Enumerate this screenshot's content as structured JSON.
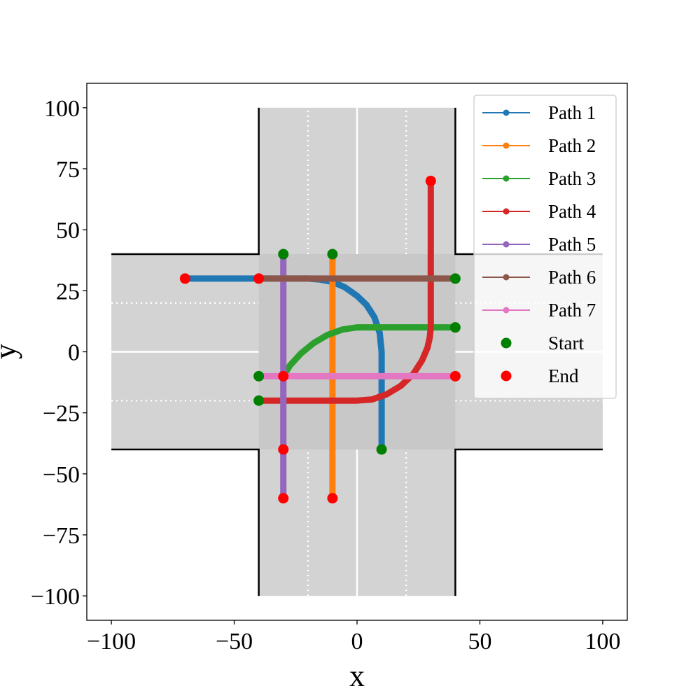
{
  "chart_data": {
    "type": "line",
    "xlabel": "x",
    "ylabel": "y",
    "xlim": [
      -110,
      110
    ],
    "ylim": [
      -110,
      110
    ],
    "xticks": [
      -100,
      -50,
      0,
      50,
      100
    ],
    "yticks": [
      -100,
      -75,
      -50,
      -25,
      0,
      25,
      50,
      75,
      100
    ],
    "xtick_labels": [
      "−100",
      "−50",
      "0",
      "50",
      "100"
    ],
    "ytick_labels": [
      "−100",
      "−75",
      "−50",
      "−25",
      "0",
      "25",
      "50",
      "75",
      "100"
    ],
    "grid": false,
    "legend_position": "top-right",
    "colors": {
      "road": "#d3d3d3",
      "intersection": "#c8c8c8",
      "road_edge": "#000000",
      "lane_line": "#ffffff",
      "start_marker": "#008000",
      "end_marker": "#ff0000"
    },
    "road_layout": {
      "horizontal_road": {
        "x": [
          -100,
          100
        ],
        "y": [
          -40,
          40
        ]
      },
      "vertical_road": {
        "x": [
          -40,
          40
        ],
        "y": [
          -100,
          100
        ]
      },
      "solid_center_lines": [
        {
          "points": [
            [
              -100,
              0
            ],
            [
              -40,
              0
            ]
          ]
        },
        {
          "points": [
            [
              40,
              0
            ],
            [
              100,
              0
            ]
          ]
        },
        {
          "points": [
            [
              0,
              40
            ],
            [
              0,
              100
            ]
          ]
        },
        {
          "points": [
            [
              0,
              -100
            ],
            [
              0,
              -40
            ]
          ]
        }
      ],
      "dotted_lane_lines": [
        {
          "points": [
            [
              -100,
              20
            ],
            [
              -40,
              20
            ]
          ]
        },
        {
          "points": [
            [
              -100,
              -20
            ],
            [
              -40,
              -20
            ]
          ]
        },
        {
          "points": [
            [
              40,
              20
            ],
            [
              100,
              20
            ]
          ]
        },
        {
          "points": [
            [
              40,
              -20
            ],
            [
              100,
              -20
            ]
          ]
        },
        {
          "points": [
            [
              -20,
              40
            ],
            [
              -20,
              100
            ]
          ]
        },
        {
          "points": [
            [
              20,
              40
            ],
            [
              20,
              100
            ]
          ]
        },
        {
          "points": [
            [
              -20,
              -100
            ],
            [
              -20,
              -40
            ]
          ]
        },
        {
          "points": [
            [
              20,
              -100
            ],
            [
              20,
              -40
            ]
          ]
        }
      ]
    },
    "series": [
      {
        "name": "Path 1",
        "color": "#1f77b4",
        "points": [
          [
            10,
            -40
          ],
          [
            10,
            0
          ],
          [
            9.24,
            7.65
          ],
          [
            7.07,
            14.14
          ],
          [
            3.83,
            19.24
          ],
          [
            0,
            22.93
          ],
          [
            -5,
            26.46
          ],
          [
            -10,
            28.66
          ],
          [
            -15,
            29.6
          ],
          [
            -20,
            30
          ],
          [
            -70,
            30
          ]
        ],
        "start": [
          10,
          -40
        ],
        "end": [
          -70,
          30
        ]
      },
      {
        "name": "Path 2",
        "color": "#ff7f0e",
        "points": [
          [
            -10,
            40
          ],
          [
            -10,
            -60
          ]
        ],
        "start": [
          -10,
          40
        ],
        "end": [
          -10,
          -60
        ]
      },
      {
        "name": "Path 3",
        "color": "#2ca02c",
        "points": [
          [
            40,
            10
          ],
          [
            0,
            10
          ],
          [
            -5.96,
            9.13
          ],
          [
            -12.03,
            6.9
          ],
          [
            -17.78,
            3.49
          ],
          [
            -22.93,
            -0.78
          ],
          [
            -27.32,
            -5.62
          ],
          [
            -30,
            -10
          ]
        ],
        "start": [
          40,
          10
        ],
        "end": [
          -30,
          -10
        ]
      },
      {
        "name": "Path 4",
        "color": "#d62728",
        "points": [
          [
            -40,
            -20
          ],
          [
            0,
            -20
          ],
          [
            6.07,
            -19.54
          ],
          [
            12.03,
            -17.44
          ],
          [
            17.78,
            -13.97
          ],
          [
            22.93,
            -9.05
          ],
          [
            26.46,
            -3.5
          ],
          [
            28.66,
            1.7
          ],
          [
            29.6,
            5.9
          ],
          [
            30,
            10
          ],
          [
            30,
            70
          ]
        ],
        "start": [
          -40,
          -20
        ],
        "end": [
          30,
          70
        ]
      },
      {
        "name": "Path 5",
        "color": "#9467bd",
        "points": [
          [
            -30,
            40
          ],
          [
            -30,
            -60
          ]
        ],
        "start": [
          -30,
          40
        ],
        "end": [
          -30,
          -60
        ]
      },
      {
        "name": "Path 6",
        "color": "#8c564b",
        "points": [
          [
            40,
            30
          ],
          [
            -40,
            30
          ]
        ],
        "start": [
          40,
          30
        ],
        "end": [
          -40,
          30
        ]
      },
      {
        "name": "Path 7",
        "color": "#e377c2",
        "points": [
          [
            -40,
            -10
          ],
          [
            40,
            -10
          ]
        ],
        "start": [
          -40,
          -10
        ],
        "end": [
          40,
          -10
        ]
      }
    ],
    "extra_end_markers": [
      [
        -30,
        -40
      ]
    ],
    "legend": [
      {
        "label": "Path 1",
        "kind": "line",
        "color": "#1f77b4"
      },
      {
        "label": "Path 2",
        "kind": "line",
        "color": "#ff7f0e"
      },
      {
        "label": "Path 3",
        "kind": "line",
        "color": "#2ca02c"
      },
      {
        "label": "Path 4",
        "kind": "line",
        "color": "#d62728"
      },
      {
        "label": "Path 5",
        "kind": "line",
        "color": "#9467bd"
      },
      {
        "label": "Path 6",
        "kind": "line",
        "color": "#8c564b"
      },
      {
        "label": "Path 7",
        "kind": "line",
        "color": "#e377c2"
      },
      {
        "label": "Start",
        "kind": "marker",
        "color": "#008000"
      },
      {
        "label": "End",
        "kind": "marker",
        "color": "#ff0000"
      }
    ]
  }
}
